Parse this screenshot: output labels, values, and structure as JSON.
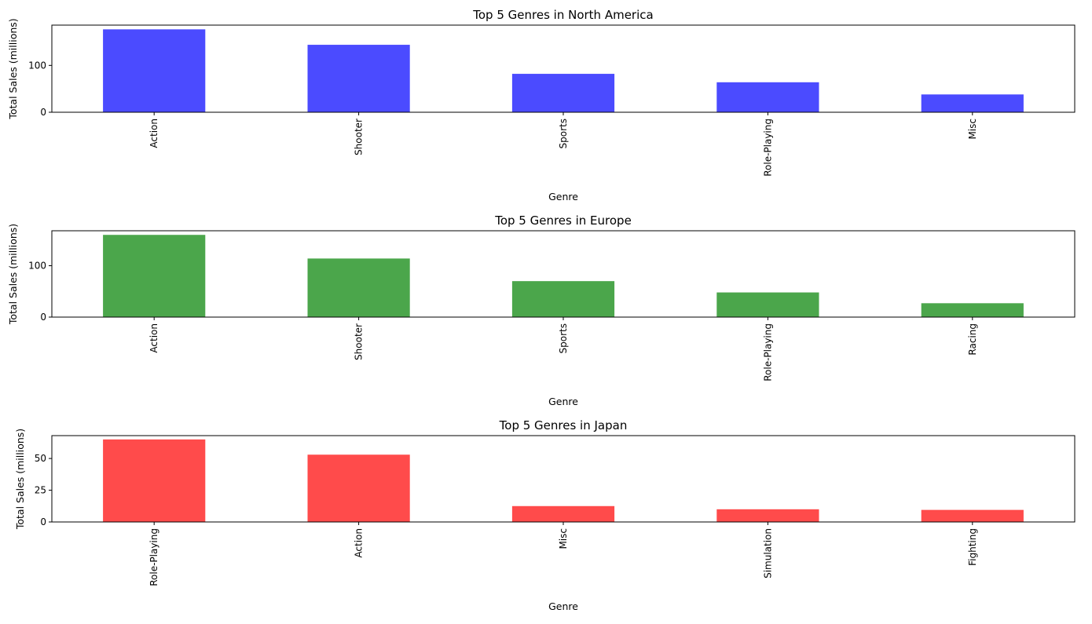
{
  "chart_data": [
    {
      "type": "bar",
      "title": "Top 5 Genres in North America",
      "xlabel": "Genre",
      "ylabel": "Total Sales (millions)",
      "categories": [
        "Action",
        "Shooter",
        "Sports",
        "Role-Playing",
        "Misc"
      ],
      "values": [
        177,
        144,
        82,
        64,
        38
      ],
      "ylim": [
        0,
        186
      ],
      "yticks": [
        0,
        100
      ],
      "color": "#4b4bff",
      "grid": false
    },
    {
      "type": "bar",
      "title": "Top 5 Genres in Europe",
      "xlabel": "Genre",
      "ylabel": "Total Sales (millions)",
      "categories": [
        "Action",
        "Shooter",
        "Sports",
        "Role-Playing",
        "Racing"
      ],
      "values": [
        160,
        114,
        70,
        48,
        27
      ],
      "ylim": [
        0,
        168
      ],
      "yticks": [
        0,
        100
      ],
      "color": "#4ba64b",
      "grid": false
    },
    {
      "type": "bar",
      "title": "Top 5 Genres in Japan",
      "xlabel": "Genre",
      "ylabel": "Total Sales (millions)",
      "categories": [
        "Role-Playing",
        "Action",
        "Misc",
        "Simulation",
        "Fighting"
      ],
      "values": [
        65,
        53,
        12.5,
        10,
        9.5
      ],
      "ylim": [
        0,
        68
      ],
      "yticks": [
        0,
        25,
        50
      ],
      "color": "#ff4b4b",
      "grid": false
    }
  ]
}
